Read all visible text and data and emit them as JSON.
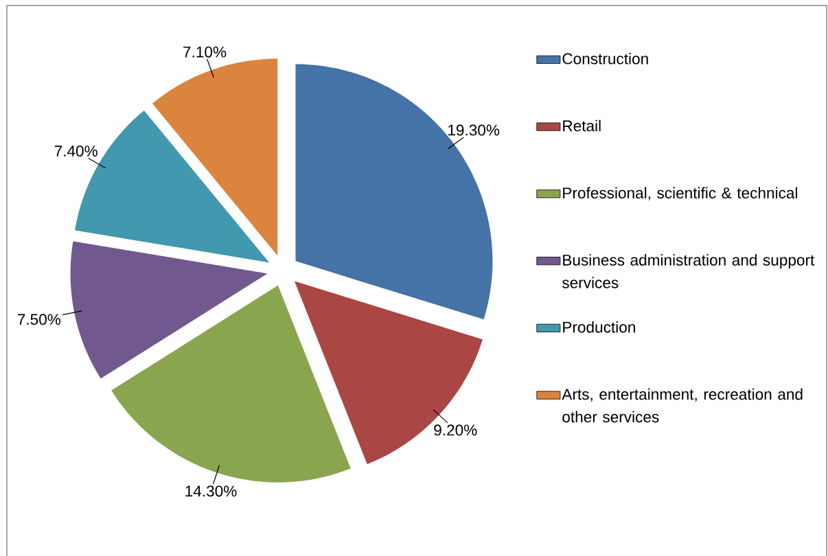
{
  "chart_data": {
    "type": "pie",
    "categories": [
      "Construction",
      "Retail",
      "Professional, scientific & technical",
      "Business administration and support services",
      "Production",
      "Arts, entertainment, recreation and other services"
    ],
    "values": [
      19.3,
      9.2,
      14.3,
      7.5,
      7.4,
      7.1
    ],
    "value_labels": [
      "19.30%",
      "9.20%",
      "14.30%",
      "7.50%",
      "7.40%",
      "7.10%"
    ],
    "colors": [
      "#4572a7",
      "#aa4643",
      "#89a54e",
      "#71588f",
      "#4198af",
      "#db843d"
    ],
    "legend": "right"
  }
}
